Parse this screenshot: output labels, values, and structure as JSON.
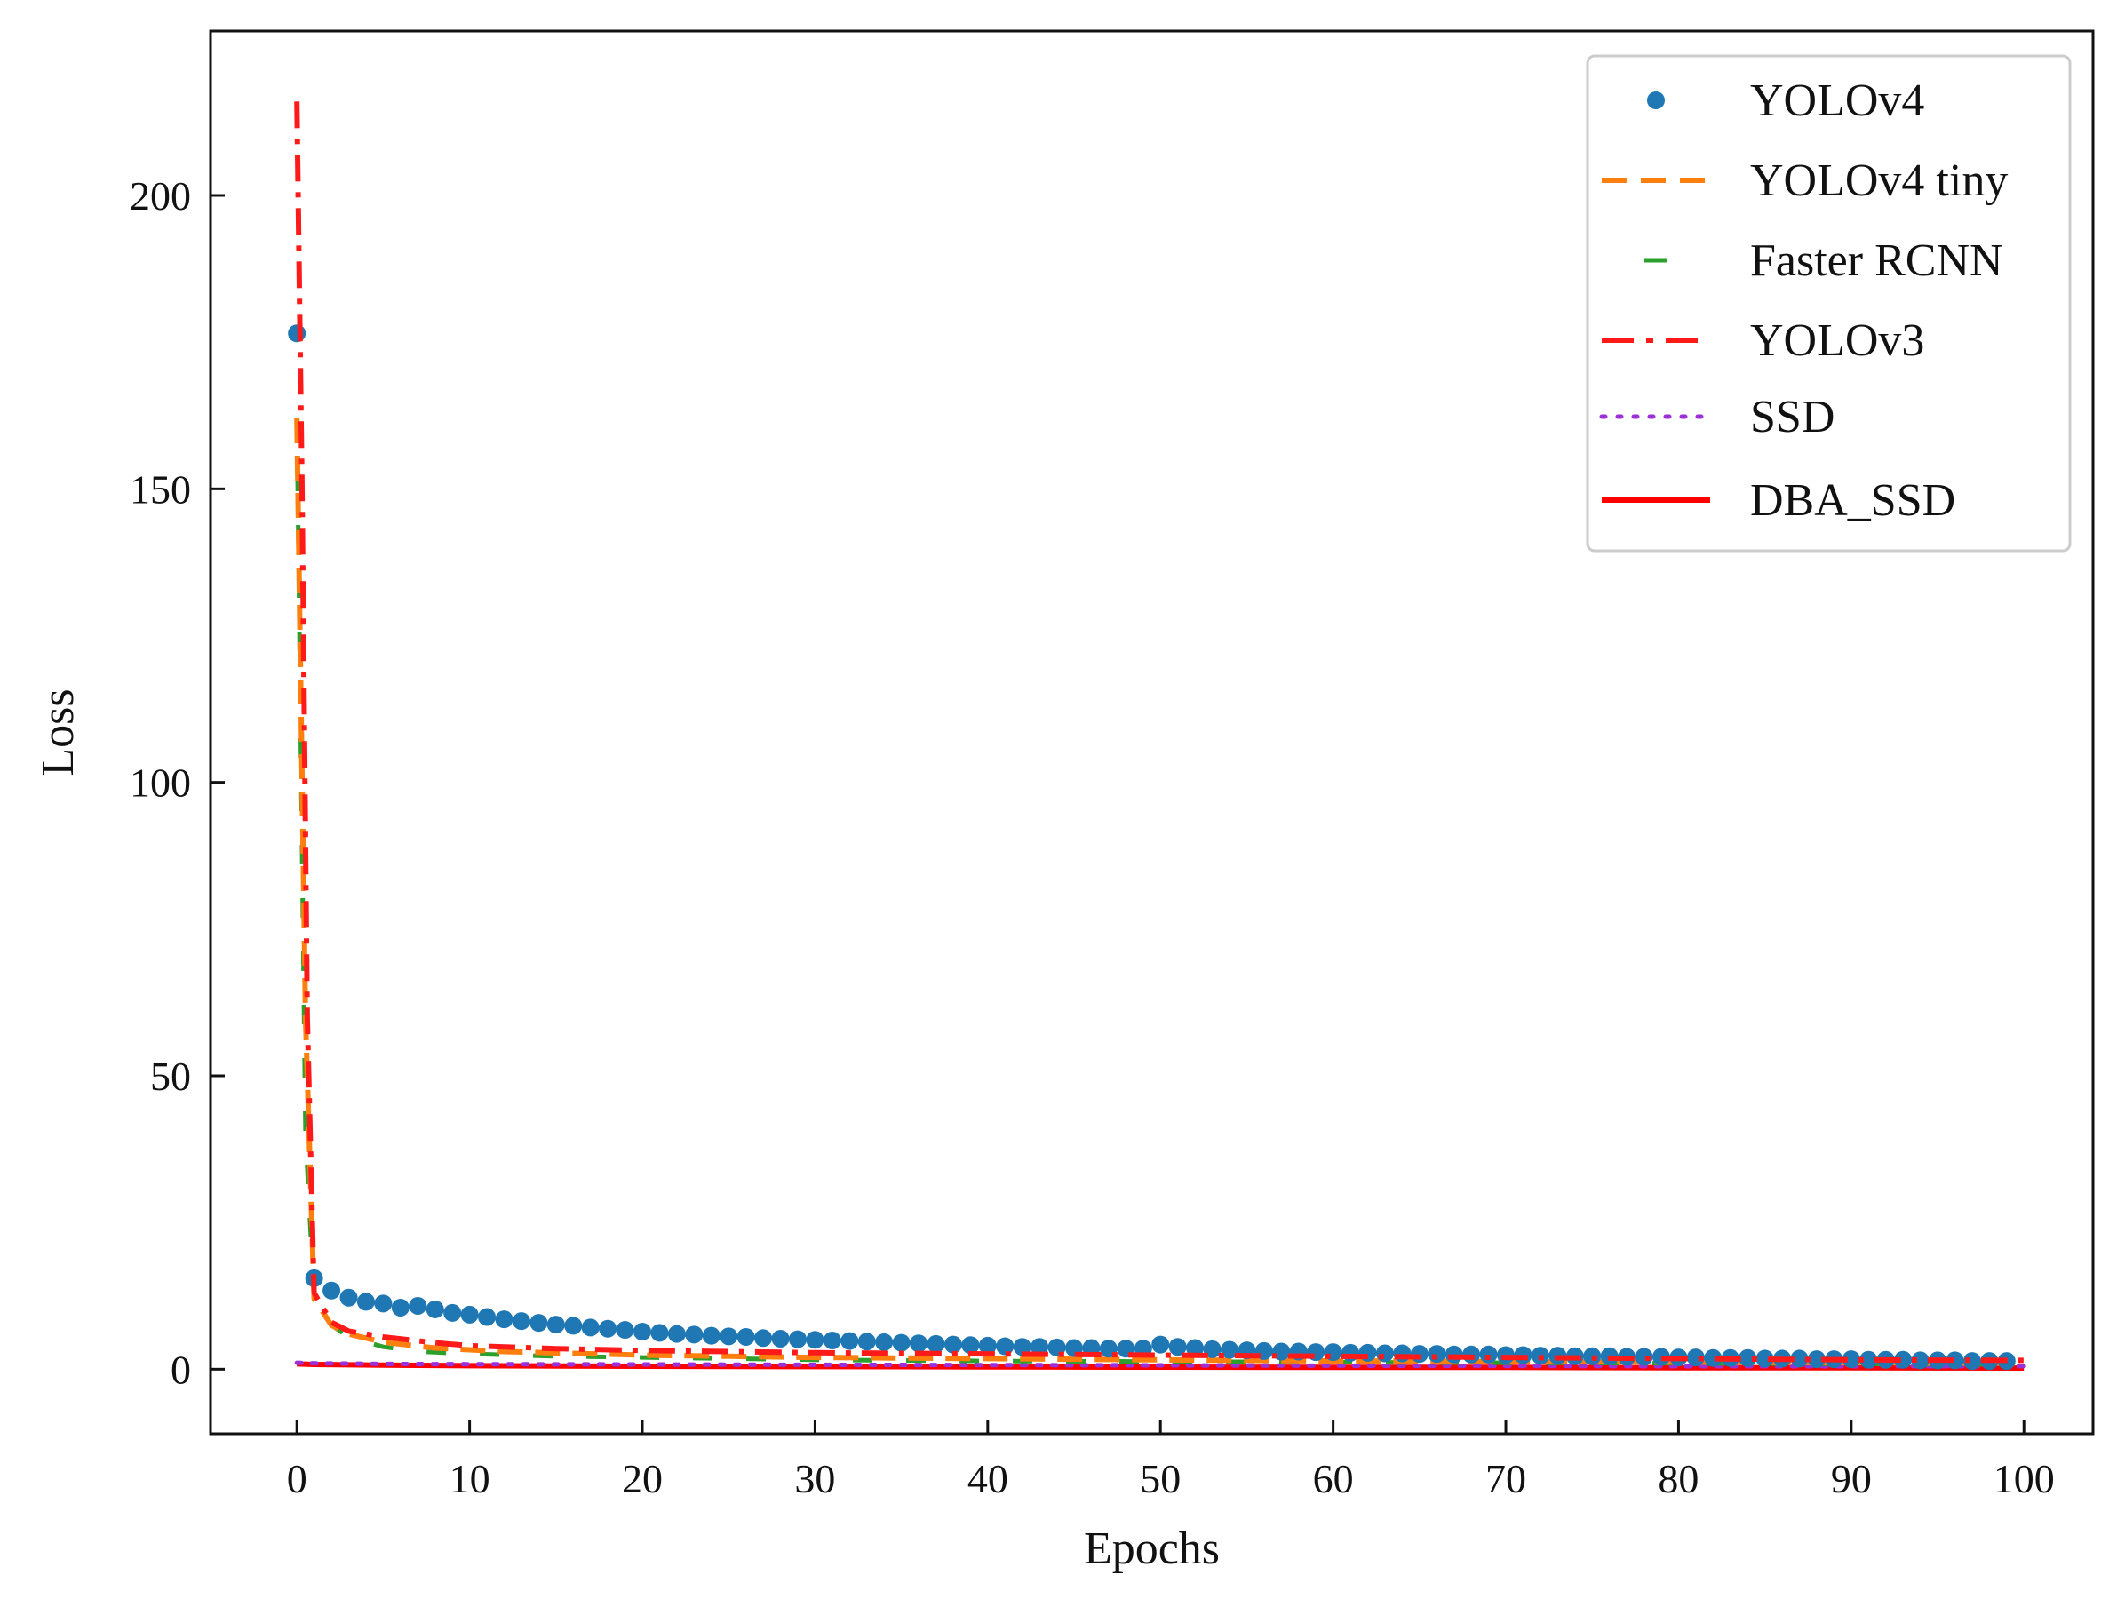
{
  "chart_data": {
    "type": "line",
    "title": "",
    "xlabel": "Epochs",
    "ylabel": "Loss",
    "xlim": [
      -5,
      104
    ],
    "ylim": [
      -11,
      228
    ],
    "xticks": [
      0,
      10,
      20,
      30,
      40,
      50,
      60,
      70,
      80,
      90,
      100
    ],
    "yticks": [
      0,
      50,
      100,
      150,
      200
    ],
    "grid": false,
    "legend_position": "top-right",
    "series": [
      {
        "name": "YOLOv4",
        "style": "markers",
        "color": "#1f77b4",
        "x": [
          0,
          1,
          2,
          3,
          4,
          5,
          6,
          7,
          8,
          9,
          10,
          11,
          12,
          13,
          14,
          15,
          16,
          17,
          18,
          19,
          20,
          21,
          22,
          23,
          24,
          25,
          26,
          27,
          28,
          29,
          30,
          31,
          32,
          33,
          34,
          35,
          36,
          37,
          38,
          39,
          40,
          41,
          42,
          43,
          44,
          45,
          46,
          47,
          48,
          49,
          50,
          51,
          52,
          53,
          54,
          55,
          56,
          57,
          58,
          59,
          60,
          61,
          62,
          63,
          64,
          65,
          66,
          67,
          68,
          69,
          70,
          71,
          72,
          73,
          74,
          75,
          76,
          77,
          78,
          79,
          80,
          81,
          82,
          83,
          84,
          85,
          86,
          87,
          88,
          89,
          90,
          91,
          92,
          93,
          94,
          95,
          96,
          97,
          98,
          99
        ],
        "y": [
          176.5,
          15.5,
          13.4,
          12.2,
          11.5,
          11.2,
          10.5,
          10.8,
          10.2,
          9.6,
          9.3,
          8.9,
          8.5,
          8.2,
          7.9,
          7.6,
          7.4,
          7.1,
          6.9,
          6.7,
          6.4,
          6.2,
          6.0,
          5.9,
          5.7,
          5.6,
          5.5,
          5.3,
          5.2,
          5.1,
          5.0,
          4.9,
          4.8,
          4.7,
          4.6,
          4.5,
          4.4,
          4.3,
          4.2,
          4.1,
          4.0,
          3.9,
          3.8,
          3.8,
          3.7,
          3.6,
          3.6,
          3.5,
          3.5,
          3.5,
          4.2,
          3.8,
          3.6,
          3.4,
          3.3,
          3.2,
          3.1,
          3.0,
          3.0,
          2.9,
          2.9,
          2.8,
          2.8,
          2.7,
          2.7,
          2.6,
          2.6,
          2.5,
          2.5,
          2.5,
          2.4,
          2.4,
          2.3,
          2.3,
          2.2,
          2.2,
          2.2,
          2.1,
          2.1,
          2.1,
          2.0,
          2.0,
          1.9,
          1.9,
          1.9,
          1.8,
          1.8,
          1.8,
          1.7,
          1.7,
          1.7,
          1.6,
          1.6,
          1.6,
          1.5,
          1.5,
          1.5,
          1.4,
          1.4,
          1.4
        ]
      },
      {
        "name": "YOLOv4 tiny",
        "style": "dashed",
        "color": "#ff7f0e",
        "x": [
          0,
          0.5,
          1,
          2,
          3,
          5,
          8,
          12,
          16,
          20,
          25,
          30,
          40,
          50,
          60,
          70,
          80,
          90,
          100
        ],
        "y": [
          162,
          60,
          12,
          7.5,
          6.0,
          4.6,
          3.6,
          3.0,
          2.7,
          2.4,
          2.2,
          2.0,
          1.8,
          1.6,
          1.4,
          1.3,
          1.2,
          1.1,
          1.0
        ]
      },
      {
        "name": "Faster RCNN",
        "style": "loose-dashed",
        "color": "#2ca02c",
        "x": [
          0,
          0.5,
          1,
          2,
          3,
          5,
          7,
          10,
          15,
          20,
          25,
          30,
          40,
          50,
          60,
          70,
          80,
          90,
          100
        ],
        "y": [
          162,
          40,
          12,
          7.5,
          5.5,
          3.8,
          3.0,
          2.6,
          2.2,
          2.0,
          1.8,
          1.6,
          1.4,
          1.3,
          1.2,
          1.1,
          1.0,
          0.9,
          0.8
        ]
      },
      {
        "name": "YOLOv3",
        "style": "dash-dot",
        "color": "#ff1a1a",
        "x": [
          0,
          0.3,
          0.6,
          1,
          2,
          3,
          5,
          8,
          10,
          15,
          20,
          25,
          30,
          40,
          50,
          60,
          70,
          80,
          90,
          100
        ],
        "y": [
          216,
          150,
          60,
          13,
          8.0,
          6.5,
          5.5,
          4.5,
          4.0,
          3.5,
          3.2,
          3.0,
          2.8,
          2.6,
          2.4,
          2.2,
          2.0,
          1.8,
          1.6,
          1.5
        ]
      },
      {
        "name": "SSD",
        "style": "dotted",
        "color": "#9b30d9",
        "x": [
          0,
          1,
          5,
          10,
          20,
          30,
          40,
          50,
          60,
          70,
          80,
          90,
          100
        ],
        "y": [
          1.1,
          1.0,
          0.9,
          0.85,
          0.8,
          0.75,
          0.7,
          0.65,
          0.6,
          0.55,
          0.5,
          0.5,
          0.5
        ]
      },
      {
        "name": "DBA_SSD",
        "style": "solid",
        "color": "#ff0000",
        "x": [
          0,
          1,
          5,
          10,
          20,
          30,
          40,
          50,
          60,
          70,
          80,
          90,
          100
        ],
        "y": [
          0.9,
          0.8,
          0.7,
          0.6,
          0.5,
          0.45,
          0.4,
          0.35,
          0.3,
          0.3,
          0.25,
          0.25,
          0.2
        ]
      }
    ]
  }
}
